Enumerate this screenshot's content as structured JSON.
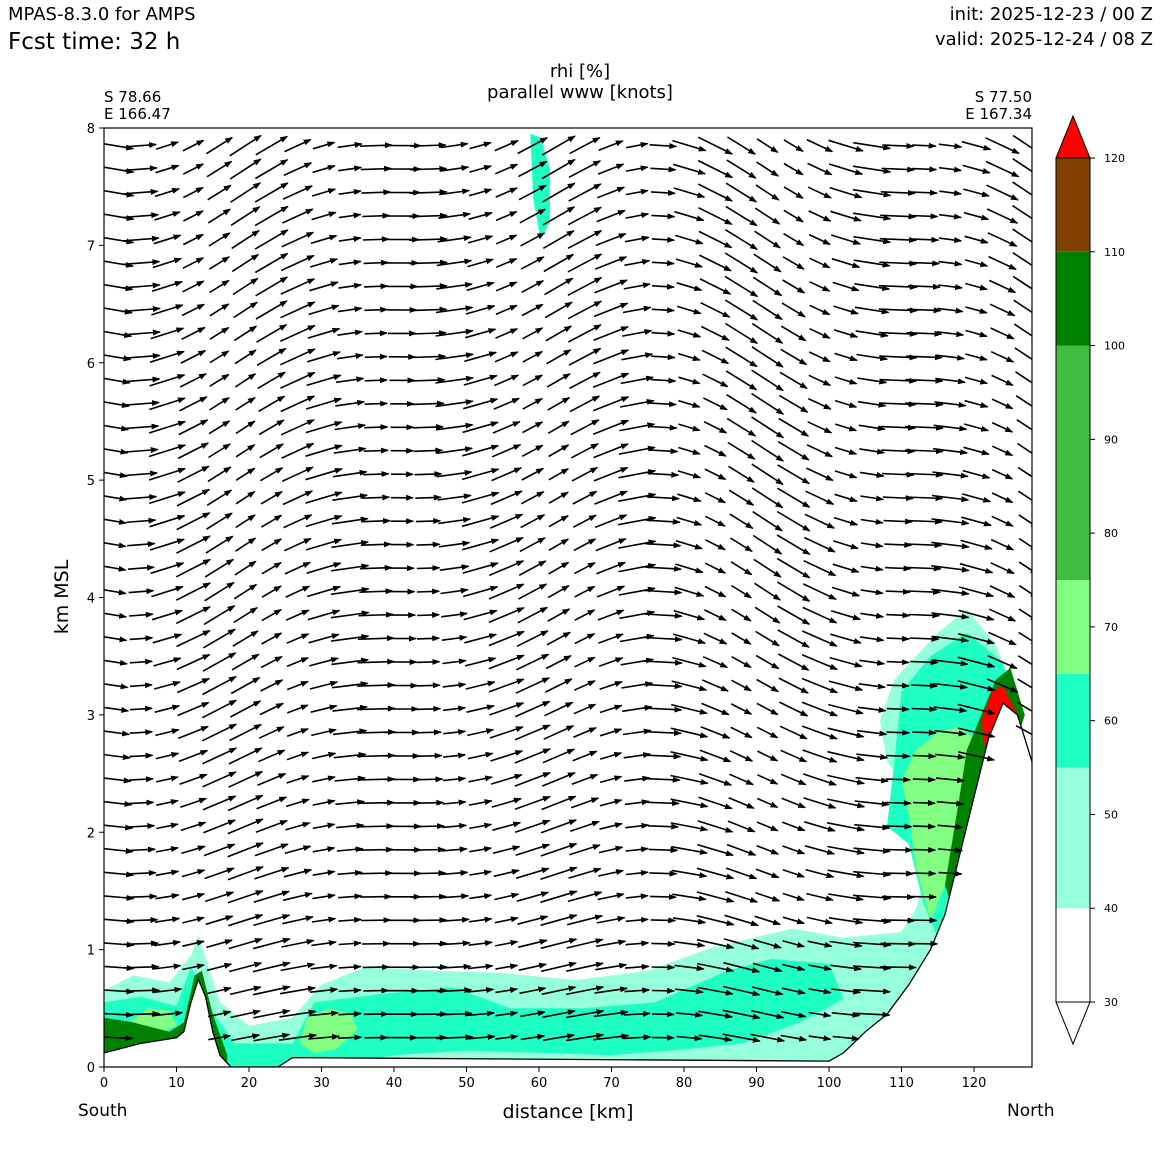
{
  "header": {
    "model": "MPAS-8.3.0 for AMPS",
    "fcst_time": "Fcst time:   32 h",
    "init": "init: 2025-12-23 / 00 Z",
    "valid": "valid: 2025-12-24 / 08 Z"
  },
  "chart_data": {
    "type": "heatmap",
    "title": "rhi [%]",
    "subtitle": "parallel www [knots]",
    "xlabel": "distance [km]",
    "ylabel": "km MSL",
    "xlim": [
      0,
      128
    ],
    "ylim": [
      0,
      8
    ],
    "x_ticks": [
      0,
      10,
      20,
      30,
      40,
      50,
      60,
      70,
      80,
      90,
      100,
      110,
      120
    ],
    "y_ticks": [
      0,
      1,
      2,
      3,
      4,
      5,
      6,
      7,
      8
    ],
    "endpoints": {
      "left": {
        "lat": "S 78.66",
        "lon": "E 166.47"
      },
      "right": {
        "lat": "S 77.50",
        "lon": "E 167.34"
      }
    },
    "direction_labels": {
      "left": "South",
      "right": "North"
    },
    "colorbar": {
      "ticks": [
        30,
        40,
        50,
        60,
        70,
        80,
        90,
        100,
        110,
        120
      ],
      "levels": [
        30,
        40,
        55,
        65,
        75,
        100,
        110,
        120
      ],
      "colors": [
        "#ffffff",
        "#96ffdc",
        "#1effc3",
        "#82ff82",
        "#41be41",
        "#008200",
        "#824100",
        "#ff0000"
      ],
      "extend": "both"
    },
    "terrain_profile": [
      [
        0,
        0.12
      ],
      [
        5,
        0.2
      ],
      [
        10,
        0.25
      ],
      [
        11,
        0.3
      ],
      [
        12,
        0.55
      ],
      [
        13,
        0.75
      ],
      [
        14,
        0.6
      ],
      [
        15,
        0.3
      ],
      [
        16,
        0.1
      ],
      [
        17.5,
        0.0
      ],
      [
        24,
        0.0
      ],
      [
        26,
        0.08
      ],
      [
        100,
        0.05
      ],
      [
        102,
        0.12
      ],
      [
        105,
        0.3
      ],
      [
        108,
        0.45
      ],
      [
        111,
        0.7
      ],
      [
        114,
        1.0
      ],
      [
        116,
        1.3
      ],
      [
        118,
        1.8
      ],
      [
        120,
        2.3
      ],
      [
        122,
        2.8
      ],
      [
        124,
        3.1
      ],
      [
        126,
        3.0
      ],
      [
        128,
        2.6
      ]
    ]
  }
}
